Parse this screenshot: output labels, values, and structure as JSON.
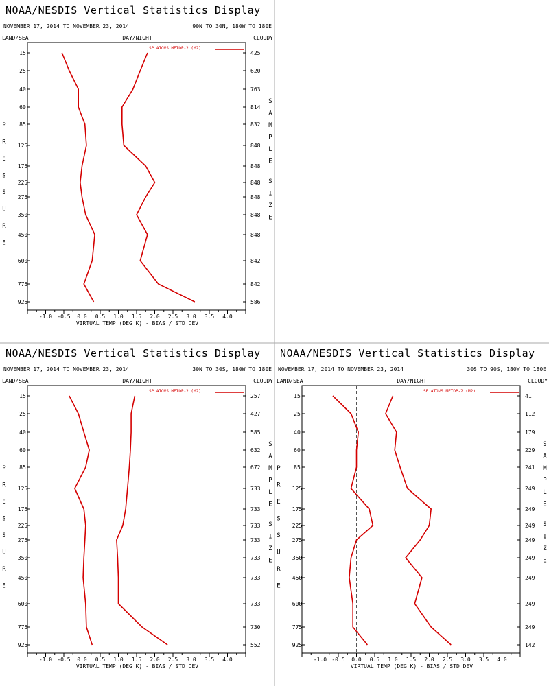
{
  "panels": [
    {
      "title": "NOAA/NESDIS Vertical Statistics Display",
      "date_range": "NOVEMBER 17, 2014 TO NOVEMBER 23, 2014",
      "region": "90N TO 30N, 180W TO 180E",
      "surface_label": "LAND/SEA",
      "time_label": "DAY/NIGHT",
      "sky_label": "CLOUDY",
      "left_axis_title": "PRESSURE",
      "right_axis_title": "SAMPLE SIZE",
      "xlabel": "VIRTUAL TEMP (DEG K) - BIAS / STD DEV",
      "legend": "SP ATOVS METOP-2 (M2)",
      "sample_sizes": [
        "425",
        "620",
        "763",
        "814",
        "832",
        "848",
        "848",
        "848",
        "848",
        "848",
        "848",
        "842",
        "842",
        "586"
      ]
    },
    {
      "title": "NOAA/NESDIS Vertical Statistics Display",
      "date_range": "NOVEMBER 17, 2014 TO NOVEMBER 23, 2014",
      "region": "30N TO 30S, 180W TO 180E",
      "surface_label": "LAND/SEA",
      "time_label": "DAY/NIGHT",
      "sky_label": "CLOUDY",
      "left_axis_title": "PRESSURE",
      "right_axis_title": "SAMPLE SIZE",
      "xlabel": "VIRTUAL TEMP (DEG K) - BIAS / STD DEV",
      "legend": "SP ATOVS METOP-2 (M2)",
      "sample_sizes": [
        "257",
        "427",
        "585",
        "632",
        "672",
        "733",
        "733",
        "733",
        "733",
        "733",
        "733",
        "733",
        "730",
        "552"
      ]
    },
    {
      "title": "NOAA/NESDIS Vertical Statistics Display",
      "date_range": "NOVEMBER 17, 2014 TO NOVEMBER 23, 2014",
      "region": "30S TO 90S, 180W TO 180E",
      "surface_label": "LAND/SEA",
      "time_label": "DAY/NIGHT",
      "sky_label": "CLOUDY",
      "left_axis_title": "PRESSURE",
      "right_axis_title": "SAMPLE SIZE",
      "xlabel": "VIRTUAL TEMP (DEG K) - BIAS / STD DEV",
      "legend": "SP ATOVS METOP-2 (M2)",
      "sample_sizes": [
        "41",
        "112",
        "179",
        "229",
        "241",
        "249",
        "249",
        "249",
        "249",
        "249",
        "249",
        "249",
        "249",
        "142"
      ]
    }
  ],
  "chart_data": [
    {
      "type": "line",
      "y_levels": [
        15,
        25,
        40,
        60,
        85,
        125,
        175,
        225,
        275,
        350,
        450,
        600,
        775,
        925
      ],
      "xlim": [
        -1.5,
        4.5
      ],
      "x_ticks": [
        "-1.0",
        "-0.5",
        "0.0",
        "0.5",
        "1.0",
        "1.5",
        "2.0",
        "2.5",
        "3.0",
        "3.5",
        "4.0"
      ],
      "zero_line": "dashed",
      "color": "#d40000",
      "series": [
        {
          "role": "bias",
          "values": [
            -0.55,
            -0.35,
            -0.1,
            -0.1,
            0.08,
            0.12,
            0.0,
            -0.05,
            0.0,
            0.1,
            0.35,
            0.28,
            0.05,
            0.32
          ]
        },
        {
          "role": "std_dev",
          "values": [
            1.8,
            1.6,
            1.4,
            1.1,
            1.1,
            1.15,
            1.75,
            2.0,
            1.75,
            1.5,
            1.8,
            1.6,
            2.1,
            3.1
          ]
        }
      ]
    },
    {
      "type": "line",
      "y_levels": [
        15,
        25,
        40,
        60,
        85,
        125,
        175,
        225,
        275,
        350,
        450,
        600,
        775,
        925
      ],
      "xlim": [
        -1.5,
        4.5
      ],
      "x_ticks": [
        "-1.0",
        "-0.5",
        "0.0",
        "0.5",
        "1.0",
        "1.5",
        "2.0",
        "2.5",
        "3.0",
        "3.5",
        "4.0"
      ],
      "zero_line": "dashed",
      "color": "#d40000",
      "series": [
        {
          "role": "bias",
          "values": [
            -0.35,
            -0.1,
            0.05,
            0.2,
            0.1,
            -0.2,
            0.05,
            0.1,
            0.08,
            0.05,
            0.03,
            0.1,
            0.12,
            0.28
          ]
        },
        {
          "role": "std_dev",
          "values": [
            1.45,
            1.35,
            1.35,
            1.33,
            1.3,
            1.25,
            1.2,
            1.12,
            0.95,
            0.98,
            1.0,
            1.0,
            1.65,
            2.35
          ]
        }
      ]
    },
    {
      "type": "line",
      "y_levels": [
        15,
        25,
        40,
        60,
        85,
        125,
        175,
        225,
        275,
        350,
        450,
        600,
        775,
        925
      ],
      "xlim": [
        -1.5,
        4.5
      ],
      "x_ticks": [
        "-1.0",
        "-0.5",
        "0.0",
        "0.5",
        "1.0",
        "1.5",
        "2.0",
        "2.5",
        "3.0",
        "3.5",
        "4.0"
      ],
      "zero_line": "dashed",
      "color": "#d40000",
      "series": [
        {
          "role": "bias",
          "values": [
            -0.65,
            -0.15,
            0.05,
            0.0,
            0.0,
            -0.15,
            0.35,
            0.45,
            0.0,
            -0.15,
            -0.2,
            -0.1,
            -0.1,
            0.3
          ]
        },
        {
          "role": "std_dev",
          "values": [
            1.0,
            0.8,
            1.1,
            1.05,
            1.2,
            1.4,
            2.05,
            2.0,
            1.75,
            1.35,
            1.8,
            1.6,
            2.05,
            2.6
          ]
        }
      ]
    }
  ]
}
